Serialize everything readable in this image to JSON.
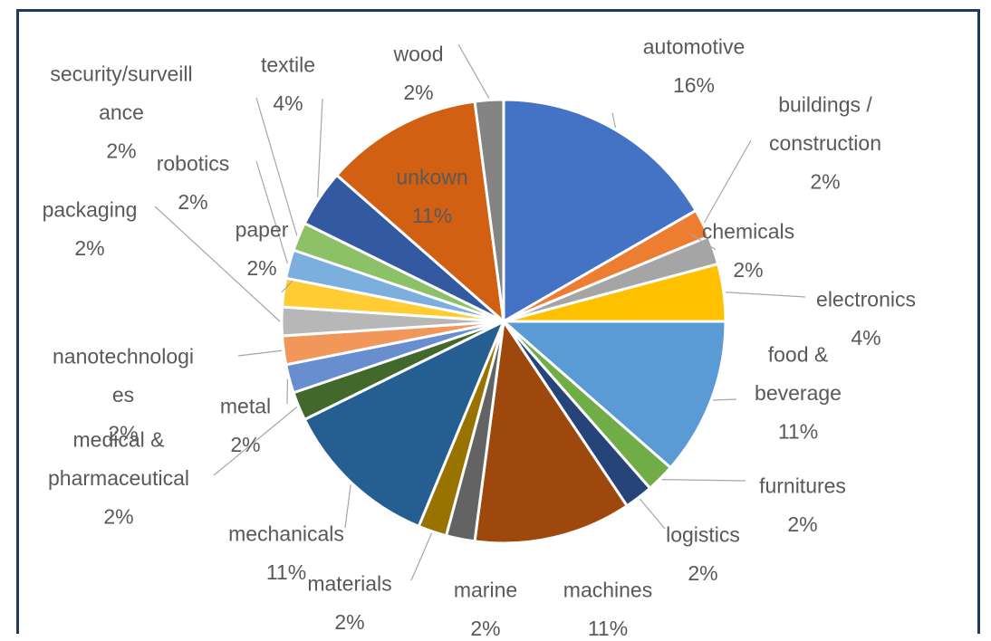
{
  "chart_data": {
    "type": "pie",
    "title": "",
    "legend": "none",
    "slices": [
      {
        "label": "automotive",
        "value": 16,
        "value_label": "16%",
        "color": "#4472C4"
      },
      {
        "label": "buildings /\nconstruction",
        "value": 2,
        "value_label": "2%",
        "color": "#ED7D31"
      },
      {
        "label": "chemicals",
        "value": 2,
        "value_label": "2%",
        "color": "#A5A5A5"
      },
      {
        "label": "electronics",
        "value": 4,
        "value_label": "4%",
        "color": "#FFC000"
      },
      {
        "label": "food &\nbeverage",
        "value": 11,
        "value_label": "11%",
        "color": "#5B9BD5"
      },
      {
        "label": "furnitures",
        "value": 2,
        "value_label": "2%",
        "color": "#70AD47"
      },
      {
        "label": "logistics",
        "value": 2,
        "value_label": "2%",
        "color": "#264478"
      },
      {
        "label": "machines",
        "value": 11,
        "value_label": "11%",
        "color": "#9E480E"
      },
      {
        "label": "marine",
        "value": 2,
        "value_label": "2%",
        "color": "#636363"
      },
      {
        "label": "materials",
        "value": 2,
        "value_label": "2%",
        "color": "#997300"
      },
      {
        "label": "mechanicals",
        "value": 11,
        "value_label": "11%",
        "color": "#255E91"
      },
      {
        "label": "medical &\npharmaceutical",
        "value": 2,
        "value_label": "2%",
        "color": "#43682B"
      },
      {
        "label": "metal",
        "value": 2,
        "value_label": "2%",
        "color": "#698ED0"
      },
      {
        "label": "nanotechnologi\nes",
        "value": 2,
        "value_label": "2%",
        "color": "#F1975A"
      },
      {
        "label": "packaging",
        "value": 2,
        "value_label": "2%",
        "color": "#B7B7B7"
      },
      {
        "label": "paper",
        "value": 2,
        "value_label": "2%",
        "color": "#FFCD33"
      },
      {
        "label": "robotics",
        "value": 2,
        "value_label": "2%",
        "color": "#7CAFDD"
      },
      {
        "label": "security/surveill\nance",
        "value": 2,
        "value_label": "2%",
        "color": "#8CC168"
      },
      {
        "label": "textile",
        "value": 4,
        "value_label": "4%",
        "color": "#335AA1"
      },
      {
        "label": "unkown",
        "value": 11,
        "value_label": "11%",
        "color": "#D26012"
      },
      {
        "label": "wood",
        "value": 2,
        "value_label": "2%",
        "color": "#848484"
      }
    ]
  }
}
